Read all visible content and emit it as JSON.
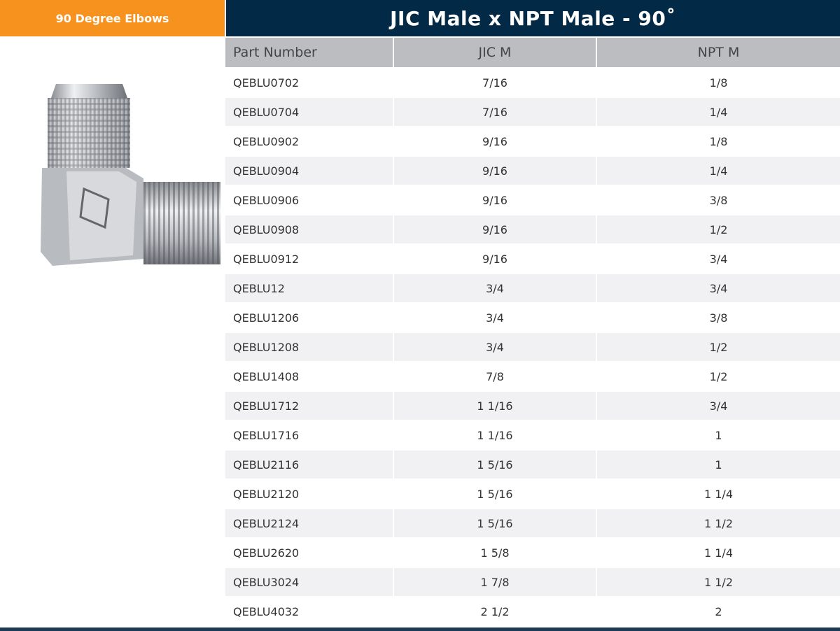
{
  "header": {
    "category": "90 Degree Elbows",
    "title": "JIC Male x NPT Male - 90˚"
  },
  "table": {
    "columns": [
      "Part Number",
      "JIC M",
      "NPT M"
    ],
    "rows": [
      [
        "QEBLU0702",
        "7/16",
        "1/8"
      ],
      [
        "QEBLU0704",
        "7/16",
        "1/4"
      ],
      [
        "QEBLU0902",
        "9/16",
        "1/8"
      ],
      [
        "QEBLU0904",
        "9/16",
        "1/4"
      ],
      [
        "QEBLU0906",
        "9/16",
        "3/8"
      ],
      [
        "QEBLU0908",
        "9/16",
        "1/2"
      ],
      [
        "QEBLU0912",
        "9/16",
        "3/4"
      ],
      [
        "QEBLU12",
        "3/4",
        "3/4"
      ],
      [
        "QEBLU1206",
        "3/4",
        "3/8"
      ],
      [
        "QEBLU1208",
        "3/4",
        "1/2"
      ],
      [
        "QEBLU1408",
        "7/8",
        "1/2"
      ],
      [
        "QEBLU1712",
        "1 1/16",
        "3/4"
      ],
      [
        "QEBLU1716",
        "1 1/16",
        "1"
      ],
      [
        "QEBLU2116",
        "1 5/16",
        "1"
      ],
      [
        "QEBLU2120",
        "1 5/16",
        "1 1/4"
      ],
      [
        "QEBLU2124",
        "1 5/16",
        "1 1/2"
      ],
      [
        "QEBLU2620",
        "1 5/8",
        "1 1/4"
      ],
      [
        "QEBLU3024",
        "1 7/8",
        "1 1/2"
      ],
      [
        "QEBLU4032",
        "2 1/2",
        "2"
      ]
    ]
  },
  "colors": {
    "orange": "#f7921e",
    "navy": "#022a47",
    "header_gray": "#bcbdc0"
  }
}
